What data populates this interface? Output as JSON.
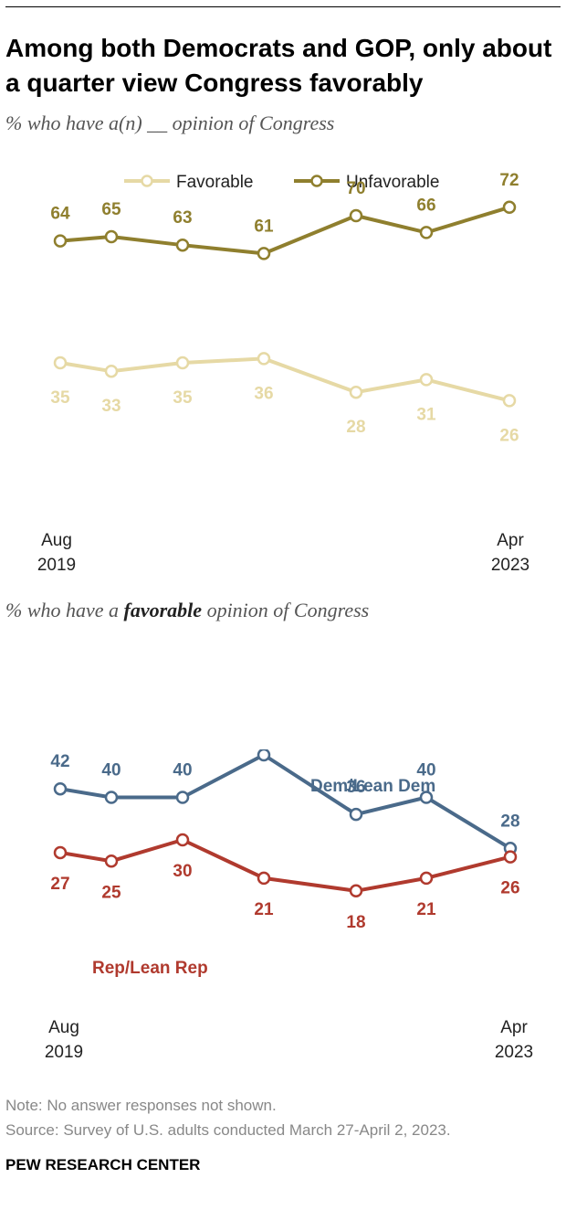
{
  "title": "Among both Democrats and GOP, only about a quarter view Congress favorably",
  "subtitle_top": "% who have a(n) __ opinion of Congress",
  "subtitle_bottom_pre": "% who have a ",
  "subtitle_bottom_bold": "favorable",
  "subtitle_bottom_post": " opinion of Congress",
  "note": "Note: No answer responses not shown.",
  "source": "Survey of U.S. adults conducted March 27-April 2, 2023.",
  "source_label": "Source: ",
  "org": "PEW RESEARCH CENTER",
  "colors": {
    "favorable": "#e6d9a5",
    "unfavorable": "#8f7f2e",
    "dem": "#4a6a8a",
    "rep": "#b03a2e"
  },
  "chart_data": [
    {
      "type": "line",
      "x_labels": [
        [
          "Aug",
          "2019"
        ],
        [
          "Apr",
          "2023"
        ]
      ],
      "legend": [
        "Favorable",
        "Unfavorable"
      ],
      "ylim": [
        0,
        100
      ],
      "grid": false,
      "legend_position": "top-center",
      "series": [
        {
          "name": "Favorable",
          "values": [
            35,
            33,
            35,
            36,
            28,
            31,
            26
          ]
        },
        {
          "name": "Unfavorable",
          "values": [
            64,
            65,
            63,
            61,
            70,
            66,
            72
          ]
        }
      ]
    },
    {
      "type": "line",
      "x_labels": [
        [
          "Aug",
          "2019"
        ],
        [
          "Apr",
          "2023"
        ]
      ],
      "ylim": [
        0,
        100
      ],
      "grid": false,
      "series": [
        {
          "name": "Dem/Lean Dem",
          "values": [
            42,
            40,
            40,
            50,
            36,
            40,
            28
          ]
        },
        {
          "name": "Rep/Lean Rep",
          "values": [
            27,
            25,
            30,
            21,
            18,
            21,
            26
          ]
        }
      ]
    }
  ]
}
